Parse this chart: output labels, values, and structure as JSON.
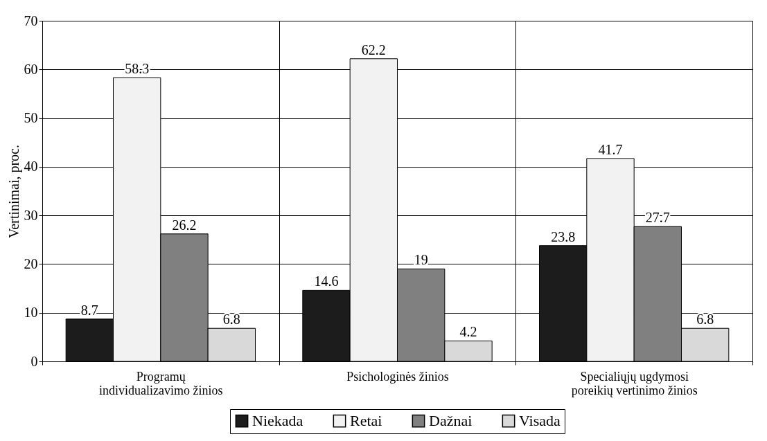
{
  "chart_data": {
    "type": "bar",
    "ylabel": "Vertinimai, proc.",
    "categories": [
      "Programų individualizavimo žinios",
      "Psichologinės žinios",
      "Specialiųjų ugdymosi poreikių vertinimo žinios"
    ],
    "series": [
      {
        "name": "Niekada",
        "color": "#1c1c1c",
        "values": [
          8.7,
          14.6,
          23.8
        ]
      },
      {
        "name": "Retai",
        "color": "#f2f2f2",
        "values": [
          58.3,
          62.2,
          41.7
        ]
      },
      {
        "name": "Dažnai",
        "color": "#808080",
        "values": [
          26.2,
          19,
          27.7
        ]
      },
      {
        "name": "Visada",
        "color": "#d9d9d9",
        "values": [
          6.8,
          4.2,
          6.8
        ]
      }
    ],
    "ylim": [
      0,
      70
    ],
    "yticks": [
      0,
      10,
      20,
      30,
      40,
      50,
      60,
      70
    ],
    "grid": true,
    "legend": "bottom",
    "data_labels": true
  }
}
